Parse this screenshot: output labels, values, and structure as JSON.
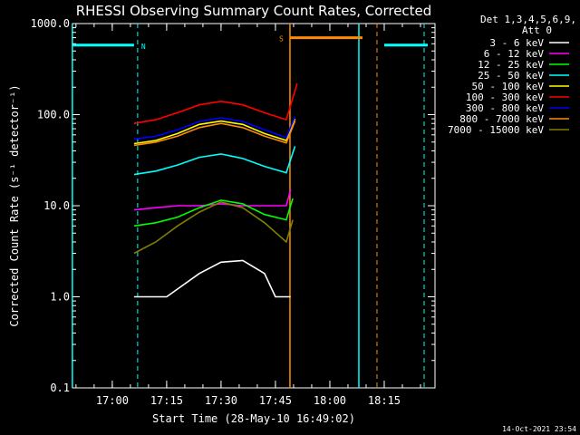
{
  "chart_data": {
    "type": "line",
    "title": "RHESSI Observing Summary Count Rates, Corrected",
    "xlabel": "Start Time (28-May-10 16:49:02)",
    "ylabel": "Corrected Count Rate (s⁻¹ detector⁻¹)",
    "ylog": true,
    "ylim": [
      0.1,
      1000
    ],
    "xlim": [
      "16:49:02",
      "18:29:00"
    ],
    "yticks": [
      "0.1",
      "1.0",
      "10.0",
      "100.0",
      "1000.0"
    ],
    "xticks": [
      "17:00",
      "17:15",
      "17:30",
      "17:45",
      "18:00",
      "18:15"
    ],
    "legend_header": [
      "Det 1,3,4,5,6,9,",
      "Att 0"
    ],
    "legend_position": "right",
    "footer_date": "14-Oct-2021 23:54",
    "flags": [
      {
        "label": "N",
        "color": "#00ffff",
        "bars": [
          [
            "16:49",
            "17:06"
          ],
          [
            "18:15",
            "18:27"
          ]
        ],
        "level": 580,
        "vlines_solid": [
          "16:49",
          "18:08"
        ],
        "vlines_dashed": [
          "17:07",
          "18:26"
        ]
      },
      {
        "label": "S",
        "color": "#ff8c00",
        "bars": [
          [
            "17:49",
            "18:09"
          ]
        ],
        "level": 700,
        "vlines_solid": [
          "17:49"
        ],
        "vlines_dashed": [
          "18:13"
        ]
      }
    ],
    "series": [
      {
        "name": "3 - 6 keV",
        "color": "#ffffff",
        "values": [
          [
            17.1,
            1.0
          ],
          [
            17.25,
            1.0
          ],
          [
            17.4,
            1.8
          ],
          [
            17.5,
            2.4
          ],
          [
            17.6,
            2.5
          ],
          [
            17.7,
            1.8
          ],
          [
            17.75,
            1.0
          ],
          [
            17.82,
            1.0
          ]
        ]
      },
      {
        "name": "6 - 12 keV",
        "color": "#ff00ff",
        "values": [
          [
            17.1,
            9.0
          ],
          [
            17.2,
            9.5
          ],
          [
            17.3,
            10.0
          ],
          [
            17.4,
            10.0
          ],
          [
            17.5,
            10.5
          ],
          [
            17.6,
            10.0
          ],
          [
            17.7,
            10.0
          ],
          [
            17.8,
            10.0
          ],
          [
            17.82,
            15.0
          ]
        ]
      },
      {
        "name": "12 - 25 keV",
        "color": "#00ff00",
        "values": [
          [
            17.1,
            6.0
          ],
          [
            17.2,
            6.5
          ],
          [
            17.3,
            7.5
          ],
          [
            17.4,
            9.5
          ],
          [
            17.5,
            11.5
          ],
          [
            17.6,
            10.5
          ],
          [
            17.7,
            8.0
          ],
          [
            17.8,
            7.0
          ],
          [
            17.83,
            12.0
          ]
        ]
      },
      {
        "name": "25 - 50 keV",
        "color": "#00ffff",
        "values": [
          [
            17.1,
            22.0
          ],
          [
            17.2,
            24.0
          ],
          [
            17.3,
            28.0
          ],
          [
            17.4,
            34.0
          ],
          [
            17.5,
            37.0
          ],
          [
            17.6,
            33.0
          ],
          [
            17.7,
            27.0
          ],
          [
            17.8,
            23.0
          ],
          [
            17.84,
            45.0
          ]
        ]
      },
      {
        "name": "50 - 100 keV",
        "color": "#ffff00",
        "values": [
          [
            17.1,
            48.0
          ],
          [
            17.2,
            52.0
          ],
          [
            17.3,
            62.0
          ],
          [
            17.4,
            78.0
          ],
          [
            17.5,
            85.0
          ],
          [
            17.6,
            78.0
          ],
          [
            17.7,
            62.0
          ],
          [
            17.8,
            52.0
          ],
          [
            17.84,
            90.0
          ]
        ]
      },
      {
        "name": "100 - 300 keV",
        "color": "#ff0000",
        "values": [
          [
            17.1,
            80.0
          ],
          [
            17.2,
            88.0
          ],
          [
            17.3,
            105.0
          ],
          [
            17.4,
            128.0
          ],
          [
            17.5,
            140.0
          ],
          [
            17.6,
            128.0
          ],
          [
            17.7,
            105.0
          ],
          [
            17.8,
            88.0
          ],
          [
            17.85,
            220.0
          ]
        ]
      },
      {
        "name": "300 - 800 keV",
        "color": "#0000ff",
        "values": [
          [
            17.1,
            54.0
          ],
          [
            17.2,
            58.0
          ],
          [
            17.3,
            68.0
          ],
          [
            17.4,
            84.0
          ],
          [
            17.5,
            92.0
          ],
          [
            17.6,
            84.0
          ],
          [
            17.7,
            68.0
          ],
          [
            17.8,
            56.0
          ],
          [
            17.84,
            95.0
          ]
        ]
      },
      {
        "name": "800 - 7000 keV",
        "color": "#ff8c00",
        "values": [
          [
            17.1,
            46.0
          ],
          [
            17.2,
            50.0
          ],
          [
            17.3,
            58.0
          ],
          [
            17.4,
            72.0
          ],
          [
            17.5,
            80.0
          ],
          [
            17.6,
            72.0
          ],
          [
            17.7,
            58.0
          ],
          [
            17.8,
            49.0
          ],
          [
            17.84,
            85.0
          ]
        ]
      },
      {
        "name": "7000 - 15000 keV",
        "color": "#808000",
        "values": [
          [
            17.1,
            3.0
          ],
          [
            17.2,
            4.0
          ],
          [
            17.3,
            6.0
          ],
          [
            17.4,
            8.5
          ],
          [
            17.5,
            11.0
          ],
          [
            17.6,
            9.5
          ],
          [
            17.7,
            6.5
          ],
          [
            17.8,
            4.0
          ],
          [
            17.83,
            7.0
          ]
        ]
      }
    ]
  }
}
